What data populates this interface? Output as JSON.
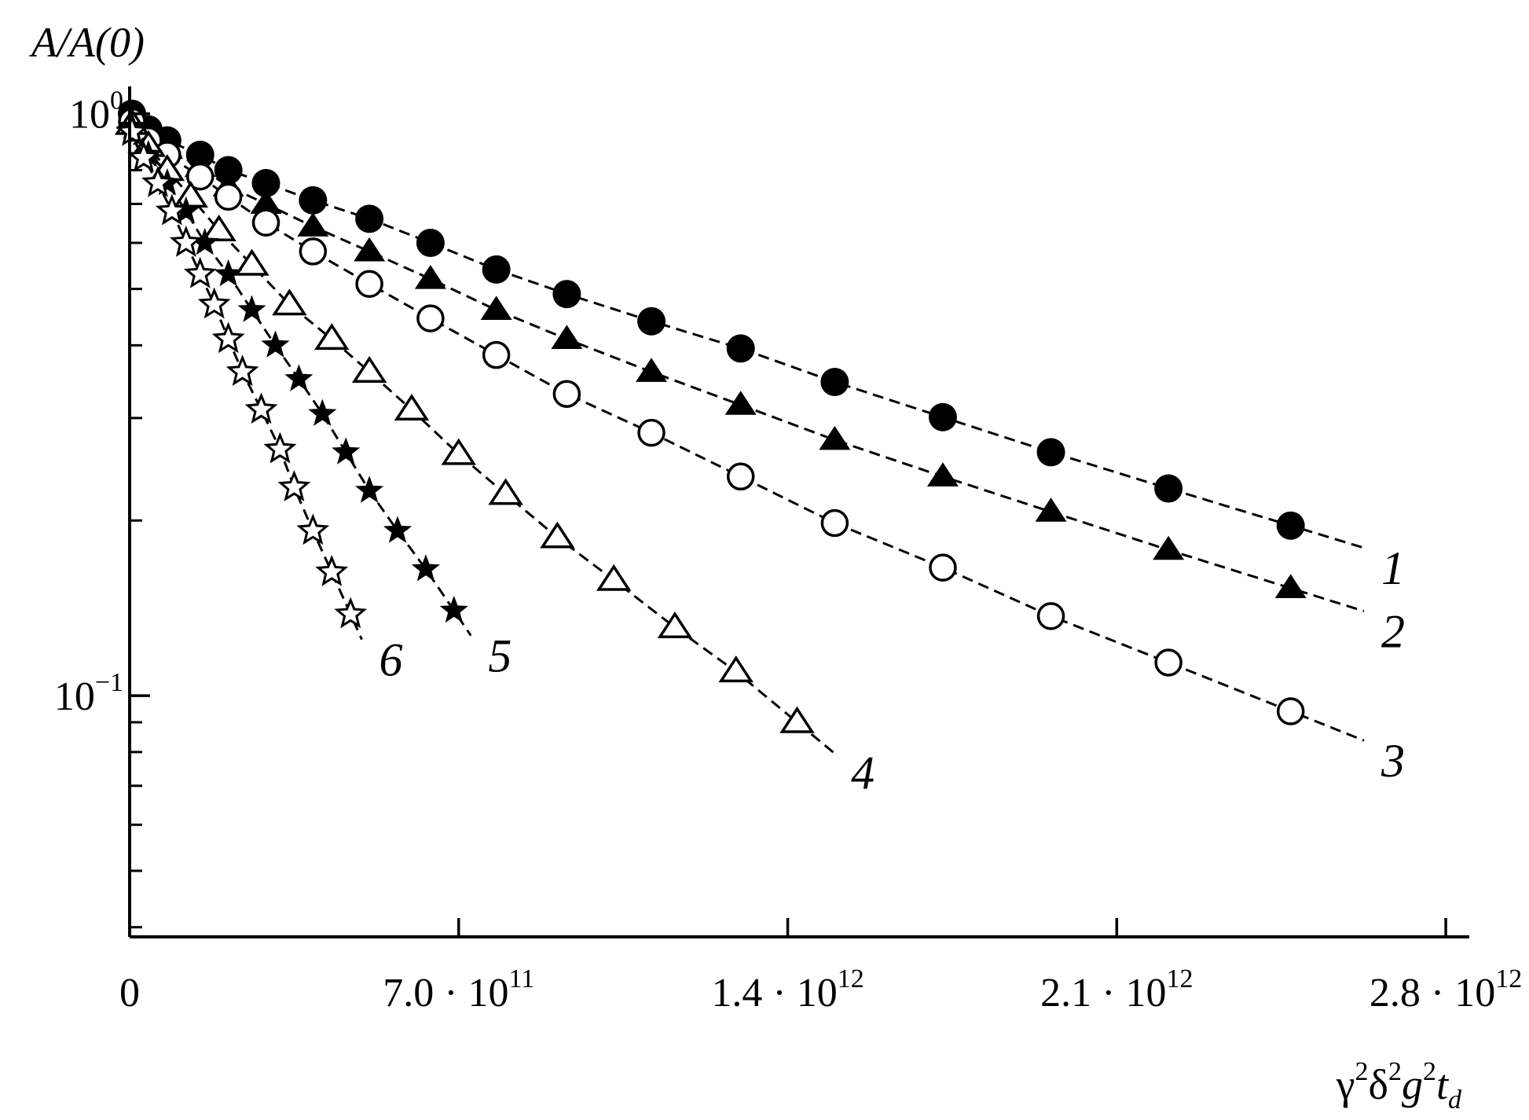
{
  "chart_data": {
    "type": "scatter",
    "ylabel": "A/A(0)",
    "xlabel": "γ²δ²g²t_d",
    "xlabel_parts": {
      "gamma": "γ",
      "delta": "δ",
      "g": "g",
      "t": "t",
      "sub": "d",
      "pow": "2"
    },
    "yscale": "log",
    "xlim": [
      0,
      2850000000000.0
    ],
    "ylim": [
      0.0385,
      1.08
    ],
    "x_ticks": [
      {
        "value": 0,
        "mantissa": "0",
        "exp": ""
      },
      {
        "value": 700000000000.0,
        "mantissa": "7.0 · 10",
        "exp": "11"
      },
      {
        "value": 1400000000000.0,
        "mantissa": "1.4 · 10",
        "exp": "12"
      },
      {
        "value": 2100000000000.0,
        "mantissa": "2.1 · 10",
        "exp": "12"
      },
      {
        "value": 2800000000000.0,
        "mantissa": "2.8 · 10",
        "exp": "12"
      }
    ],
    "y_ticks_major": [
      {
        "value": 1.0,
        "base": "10",
        "exp": "0"
      },
      {
        "value": 0.1,
        "base": "10",
        "exp": "−1"
      }
    ],
    "y_ticks_minor": [
      0.9,
      0.8,
      0.7,
      0.6,
      0.5,
      0.4,
      0.3,
      0.2,
      0.09,
      0.08,
      0.07,
      0.06,
      0.05,
      0.04
    ],
    "grid": false,
    "legend": "none",
    "series": [
      {
        "label": "1",
        "marker": "filled-circle",
        "x": [
          5000000000.0,
          40000000000.0,
          80000000000.0,
          150000000000.0,
          210000000000.0,
          290000000000.0,
          390000000000.0,
          510000000000.0,
          640000000000.0,
          780000000000.0,
          930000000000.0,
          1110000000000.0,
          1300000000000.0,
          1500000000000.0,
          1730000000000.0,
          1960000000000.0,
          2210000000000.0,
          2470000000000.0
        ],
        "y": [
          1.0,
          0.94,
          0.9,
          0.85,
          0.8,
          0.76,
          0.71,
          0.66,
          0.6,
          0.54,
          0.49,
          0.44,
          0.395,
          0.346,
          0.301,
          0.262,
          0.227,
          0.196
        ]
      },
      {
        "label": "2",
        "marker": "filled-triangle",
        "x": [
          5000000000.0,
          40000000000.0,
          80000000000.0,
          150000000000.0,
          210000000000.0,
          290000000000.0,
          390000000000.0,
          510000000000.0,
          640000000000.0,
          780000000000.0,
          930000000000.0,
          1110000000000.0,
          1300000000000.0,
          1500000000000.0,
          1730000000000.0,
          1960000000000.0,
          2210000000000.0,
          2470000000000.0
        ],
        "y": [
          0.98,
          0.92,
          0.87,
          0.81,
          0.75,
          0.7,
          0.64,
          0.58,
          0.52,
          0.46,
          0.41,
          0.36,
          0.316,
          0.275,
          0.238,
          0.207,
          0.178,
          0.153
        ]
      },
      {
        "label": "3",
        "marker": "open-circle",
        "x": [
          5000000000.0,
          40000000000.0,
          80000000000.0,
          150000000000.0,
          210000000000.0,
          290000000000.0,
          390000000000.0,
          510000000000.0,
          640000000000.0,
          780000000000.0,
          930000000000.0,
          1110000000000.0,
          1300000000000.0,
          1500000000000.0,
          1730000000000.0,
          1960000000000.0,
          2210000000000.0,
          2470000000000.0
        ],
        "y": [
          0.97,
          0.9,
          0.85,
          0.78,
          0.72,
          0.65,
          0.58,
          0.51,
          0.445,
          0.385,
          0.33,
          0.283,
          0.238,
          0.198,
          0.166,
          0.137,
          0.114,
          0.094
        ]
      },
      {
        "label": "4",
        "marker": "open-triangle",
        "x": [
          5000000000.0,
          40000000000.0,
          80000000000.0,
          130000000000.0,
          190000000000.0,
          260000000000.0,
          340000000000.0,
          430000000000.0,
          510000000000.0,
          600000000000.0,
          700000000000.0,
          800000000000.0,
          910000000000.0,
          1030000000000.0,
          1160000000000.0,
          1290000000000.0,
          1420000000000.0
        ],
        "y": [
          0.96,
          0.88,
          0.8,
          0.72,
          0.63,
          0.55,
          0.47,
          0.41,
          0.36,
          0.31,
          0.26,
          0.222,
          0.187,
          0.158,
          0.131,
          0.11,
          0.09
        ]
      },
      {
        "label": "5",
        "marker": "filled-star",
        "x": [
          5000000000.0,
          40000000000.0,
          80000000000.0,
          120000000000.0,
          160000000000.0,
          210000000000.0,
          260000000000.0,
          310000000000.0,
          360000000000.0,
          410000000000.0,
          460000000000.0,
          510000000000.0,
          570000000000.0,
          630000000000.0,
          690000000000.0
        ],
        "y": [
          0.95,
          0.85,
          0.76,
          0.68,
          0.6,
          0.53,
          0.46,
          0.4,
          0.35,
          0.305,
          0.262,
          0.225,
          0.192,
          0.165,
          0.14
        ]
      },
      {
        "label": "6",
        "marker": "open-star",
        "x": [
          5000000000.0,
          30000000000.0,
          60000000000.0,
          90000000000.0,
          120000000000.0,
          150000000000.0,
          180000000000.0,
          210000000000.0,
          240000000000.0,
          280000000000.0,
          320000000000.0,
          350000000000.0,
          390000000000.0,
          430000000000.0,
          470000000000.0
        ],
        "y": [
          0.93,
          0.84,
          0.76,
          0.68,
          0.6,
          0.53,
          0.47,
          0.41,
          0.36,
          0.31,
          0.265,
          0.228,
          0.192,
          0.163,
          0.138
        ]
      }
    ]
  }
}
